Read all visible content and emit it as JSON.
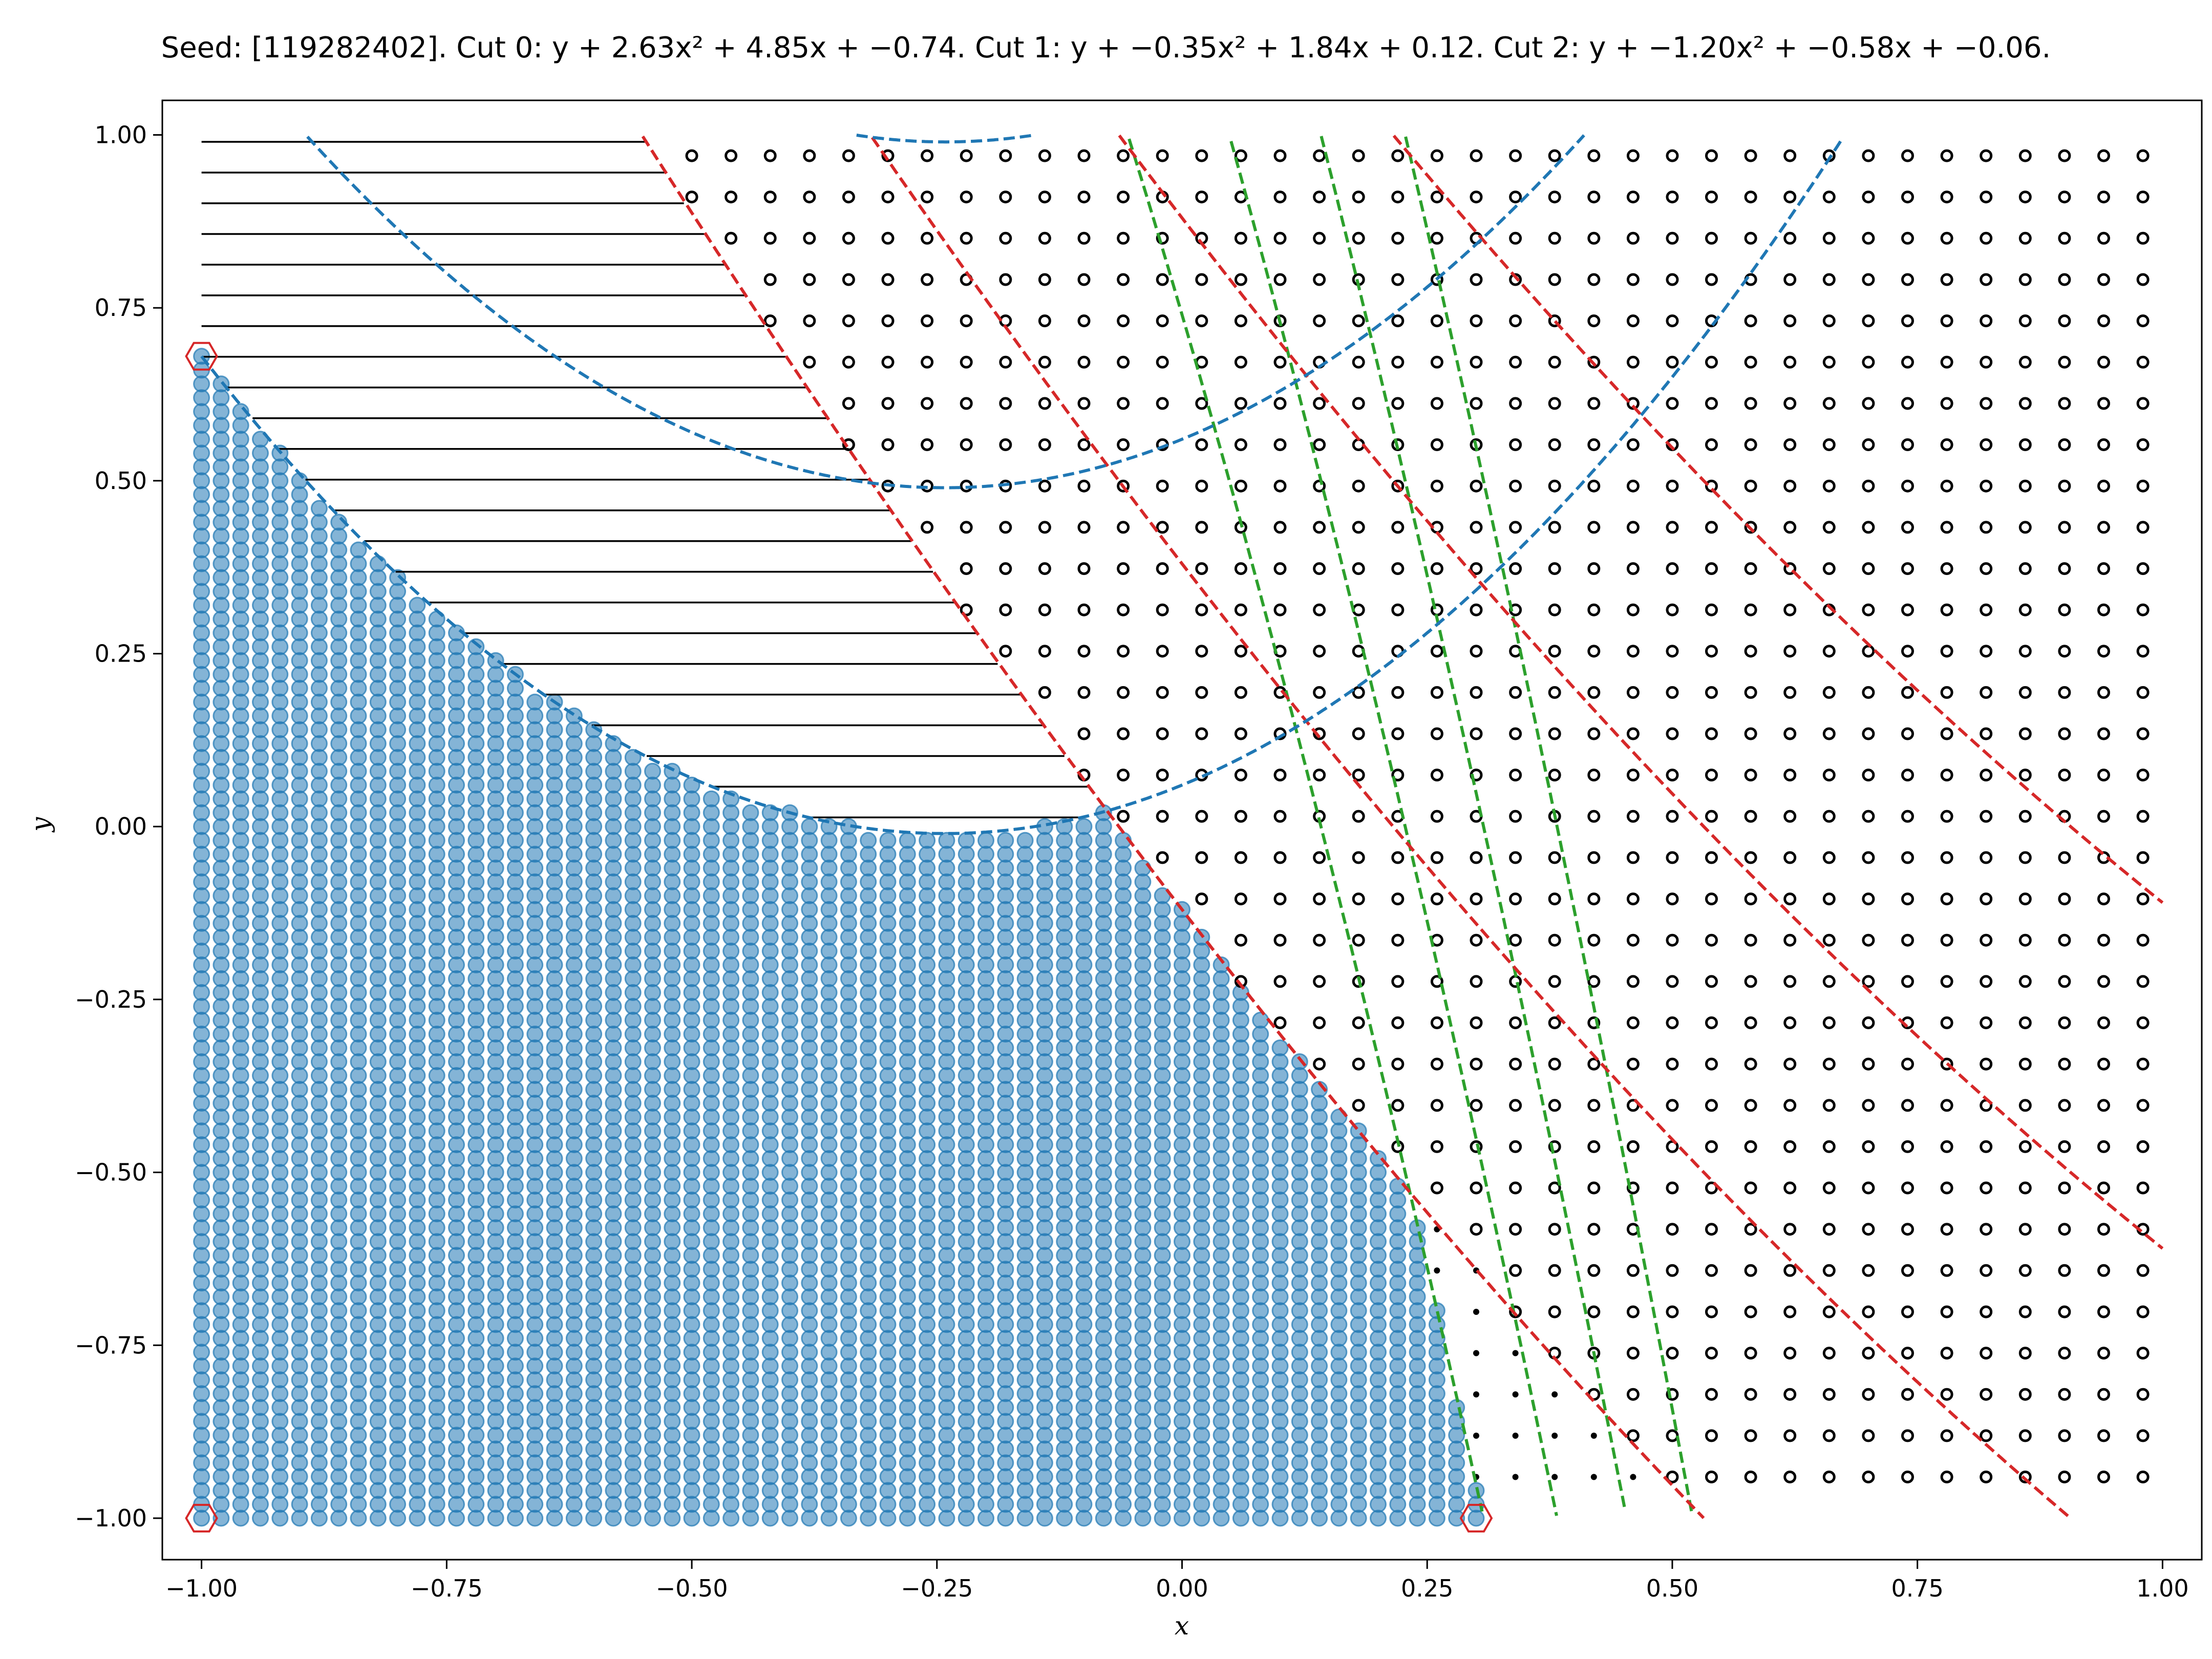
{
  "chart_data": {
    "type": "scatter",
    "title": "Seed: [119282402]. Cut 0: y + 2.63x² + 4.85x + −0.74. Cut 1: y + −0.35x² + 1.84x + 0.12. Cut 2: y + −1.20x² + −0.58x + −0.06.",
    "xlabel": "x",
    "ylabel": "y",
    "xlim": [
      -1.04,
      1.04
    ],
    "ylim": [
      -1.06,
      1.05
    ],
    "xticks": [
      -1.0,
      -0.75,
      -0.5,
      -0.25,
      0.0,
      0.25,
      0.5,
      0.75,
      1.0
    ],
    "xtick_labels": [
      "−1.00",
      "−0.75",
      "−0.50",
      "−0.25",
      "0.00",
      "0.25",
      "0.50",
      "0.75",
      "1.00"
    ],
    "yticks": [
      -1.0,
      -0.75,
      -0.5,
      -0.25,
      0.0,
      0.25,
      0.5,
      0.75,
      1.0
    ],
    "ytick_labels": [
      "−1.00",
      "−0.75",
      "−0.50",
      "−0.25",
      "0.00",
      "0.25",
      "0.50",
      "0.75",
      "1.00"
    ],
    "grid": false,
    "cuts": [
      {
        "a": 2.63,
        "b": 4.85,
        "c": -0.74,
        "color": "#2ca02c",
        "offsets": [
          0,
          0.5,
          1.0,
          1.5
        ]
      },
      {
        "a": -0.35,
        "b": 1.84,
        "c": 0.12,
        "color": "#d62728",
        "offsets": [
          0,
          0.5,
          1.0,
          1.5
        ]
      },
      {
        "a": -1.2,
        "b": -0.58,
        "c": -0.06,
        "color": "#1f77b4",
        "offsets": [
          0,
          0.5,
          1.0,
          1.5
        ]
      }
    ],
    "hexagon_vertices": [
      [
        -1.0,
        0.68
      ],
      [
        -1.0,
        -1.0
      ],
      [
        0.3,
        -1.0
      ]
    ],
    "hexagon_color": "#d62728",
    "feasible_color": "#1f77b4",
    "marker_color": "#000000"
  }
}
